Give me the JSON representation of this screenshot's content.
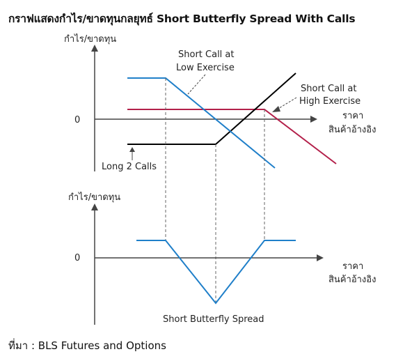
{
  "title": "กราฟแสดงกำไร/ขาดทุนกลยุทธ์ Short Butterfly Spread With Calls",
  "source": "ที่มา : BLS Futures and Options",
  "colors": {
    "short_call_low": "#1f7fc9",
    "short_call_high": "#b3204a",
    "long_calls": "#000000",
    "butterfly": "#1f7fc9",
    "axis": "#444444",
    "guide": "#666666"
  },
  "top_panel": {
    "ylabel": "กำไร/ขาดทุน",
    "zero_label": "0",
    "xlabel_line1": "ราคา",
    "xlabel_line2": "สินค้าอ้างอิง",
    "short_call_low_line1": "Short Call at",
    "short_call_low_line2": "Low Exercise",
    "short_call_high_line1": "Short Call at",
    "short_call_high_line2": "High Exercise",
    "long_calls_label": "Long 2 Calls"
  },
  "bottom_panel": {
    "ylabel": "กำไร/ขาดทุน",
    "zero_label": "0",
    "xlabel_line1": "ราคา",
    "xlabel_line2": "สินค้าอ้างอิง",
    "butterfly_label": "Short Butterfly Spread"
  }
}
